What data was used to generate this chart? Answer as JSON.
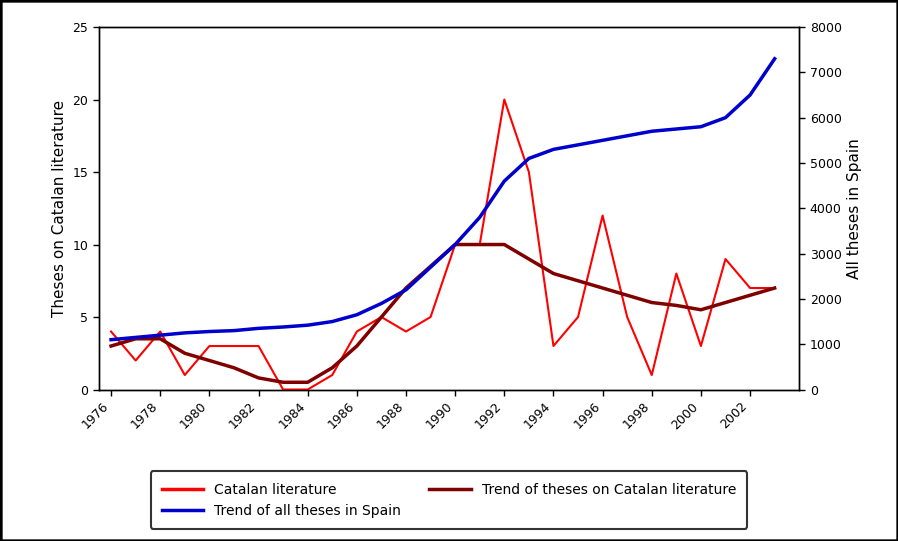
{
  "years_catalan": [
    1976,
    1977,
    1978,
    1979,
    1980,
    1981,
    1982,
    1983,
    1984,
    1985,
    1986,
    1987,
    1988,
    1989,
    1990,
    1991,
    1992,
    1993,
    1994,
    1995,
    1996,
    1997,
    1998,
    1999,
    2000,
    2001,
    2002,
    2003
  ],
  "catalan_raw": [
    4,
    2,
    4,
    1,
    3,
    3,
    3,
    0,
    0,
    1,
    4,
    5,
    4,
    5,
    10,
    10,
    20,
    15,
    3,
    5,
    12,
    5,
    1,
    8,
    3,
    9,
    7,
    7
  ],
  "catalan_trend": [
    3,
    3.5,
    3.5,
    2.5,
    2,
    1.5,
    0.8,
    0.5,
    0.5,
    1.5,
    3,
    5,
    7,
    8.5,
    10,
    10,
    10,
    9,
    8,
    7.5,
    7,
    6.5,
    6,
    5.8,
    5.5,
    6,
    6.5,
    7
  ],
  "years_all": [
    1976,
    1977,
    1978,
    1979,
    1980,
    1981,
    1982,
    1983,
    1984,
    1985,
    1986,
    1987,
    1988,
    1989,
    1990,
    1991,
    1992,
    1993,
    1994,
    1995,
    1996,
    1997,
    1998,
    1999,
    2000,
    2001,
    2002,
    2003
  ],
  "all_theses": [
    1100,
    1150,
    1200,
    1250,
    1280,
    1300,
    1350,
    1380,
    1420,
    1500,
    1650,
    1900,
    2200,
    2700,
    3200,
    3800,
    4600,
    5100,
    5300,
    5400,
    5500,
    5600,
    5700,
    5750,
    5800,
    6000,
    6500,
    7300
  ],
  "color_catalan": "#ff0000",
  "color_trend_catalan": "#800000",
  "color_trend_all": "#0000cc",
  "ylim_left": [
    0,
    25
  ],
  "ylim_right": [
    0,
    8000
  ],
  "yticks_left": [
    0,
    5,
    10,
    15,
    20,
    25
  ],
  "yticks_right": [
    0,
    1000,
    2000,
    3000,
    4000,
    5000,
    6000,
    7000,
    8000
  ],
  "xticks": [
    1976,
    1978,
    1980,
    1982,
    1984,
    1986,
    1988,
    1990,
    1992,
    1994,
    1996,
    1998,
    2000,
    2002
  ],
  "ylabel_left": "Theses on Catalan literature",
  "ylabel_right": "All theses in Spain",
  "legend_labels": [
    "Catalan literature",
    "Trend of all theses in Spain",
    "Trend of theses on Catalan literature"
  ],
  "legend_colors": [
    "#ff0000",
    "#0000cc",
    "#800000"
  ],
  "bg_color": "#ffffff",
  "outer_border_color": "#000000",
  "outer_border_lw": 2.5
}
